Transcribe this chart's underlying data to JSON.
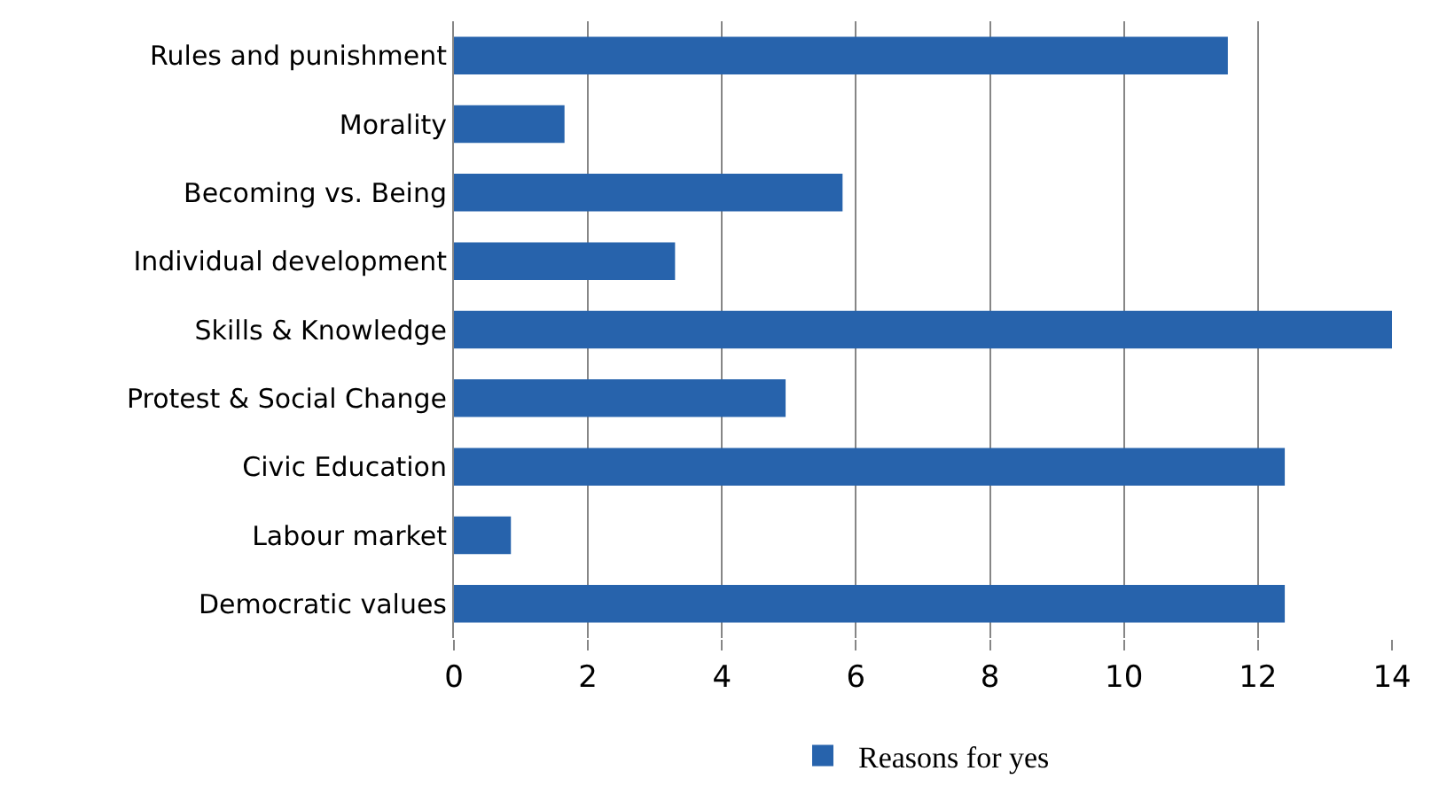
{
  "chart_data": {
    "type": "bar",
    "orientation": "horizontal",
    "categories": [
      "Rules and punishment",
      "Morality",
      "Becoming vs. Being",
      "Individual development",
      "Skills & Knowledge",
      "Protest & Social Change",
      "Civic Education",
      "Labour market",
      "Democratic values"
    ],
    "series": [
      {
        "name": "Reasons for yes",
        "color": "#2763ac",
        "values": [
          11.55,
          1.65,
          5.8,
          3.3,
          14,
          4.95,
          12.4,
          0.85,
          12.4
        ]
      }
    ],
    "xlim": [
      0,
      14
    ],
    "xticks": [
      0,
      2,
      4,
      6,
      8,
      10,
      12,
      14
    ],
    "grid": "x",
    "legend": "bottom"
  }
}
